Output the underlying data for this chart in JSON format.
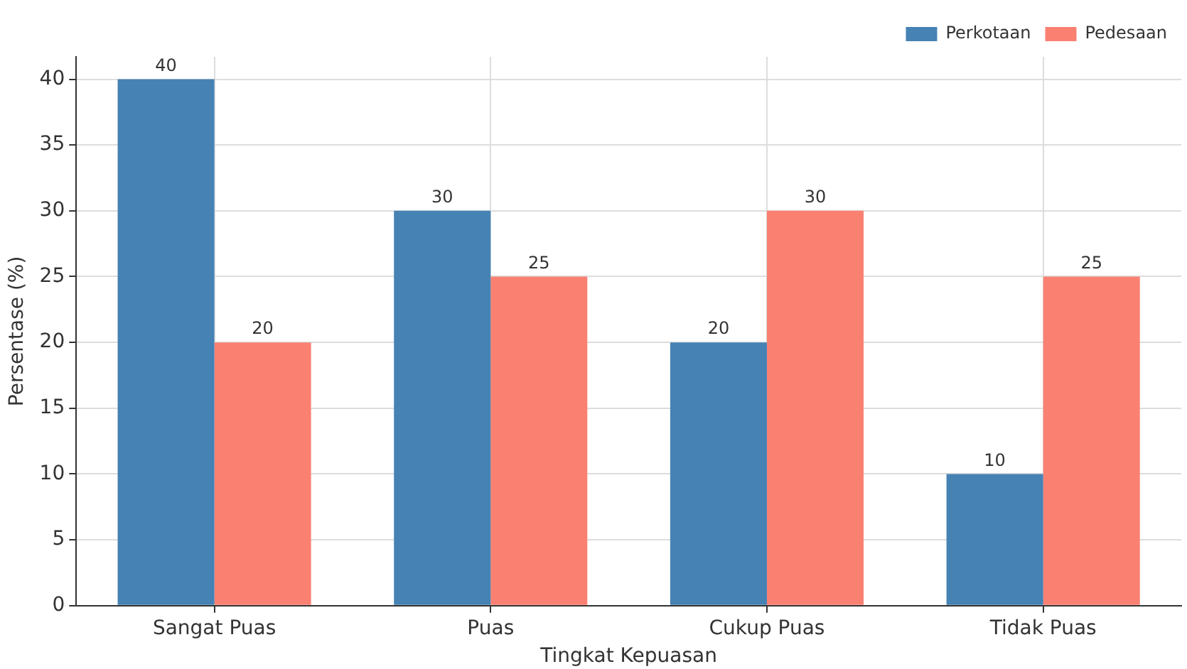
{
  "chart_data": {
    "type": "bar",
    "xlabel": "Tingkat Kepuasan",
    "ylabel": "Persentase (%)",
    "categories": [
      "Sangat Puas",
      "Puas",
      "Cukup Puas",
      "Tidak Puas"
    ],
    "series": [
      {
        "name": "Perkotaan",
        "color": "#4682b4",
        "values": [
          40,
          30,
          20,
          10
        ]
      },
      {
        "name": "Pedesaan",
        "color": "#fa8072",
        "values": [
          20,
          25,
          30,
          25
        ]
      }
    ],
    "ylim": [
      0,
      41.7
    ],
    "yticks": [
      0,
      5,
      10,
      15,
      20,
      25,
      30,
      35,
      40
    ],
    "grid": true,
    "legend": "top right",
    "data_labels": true
  }
}
